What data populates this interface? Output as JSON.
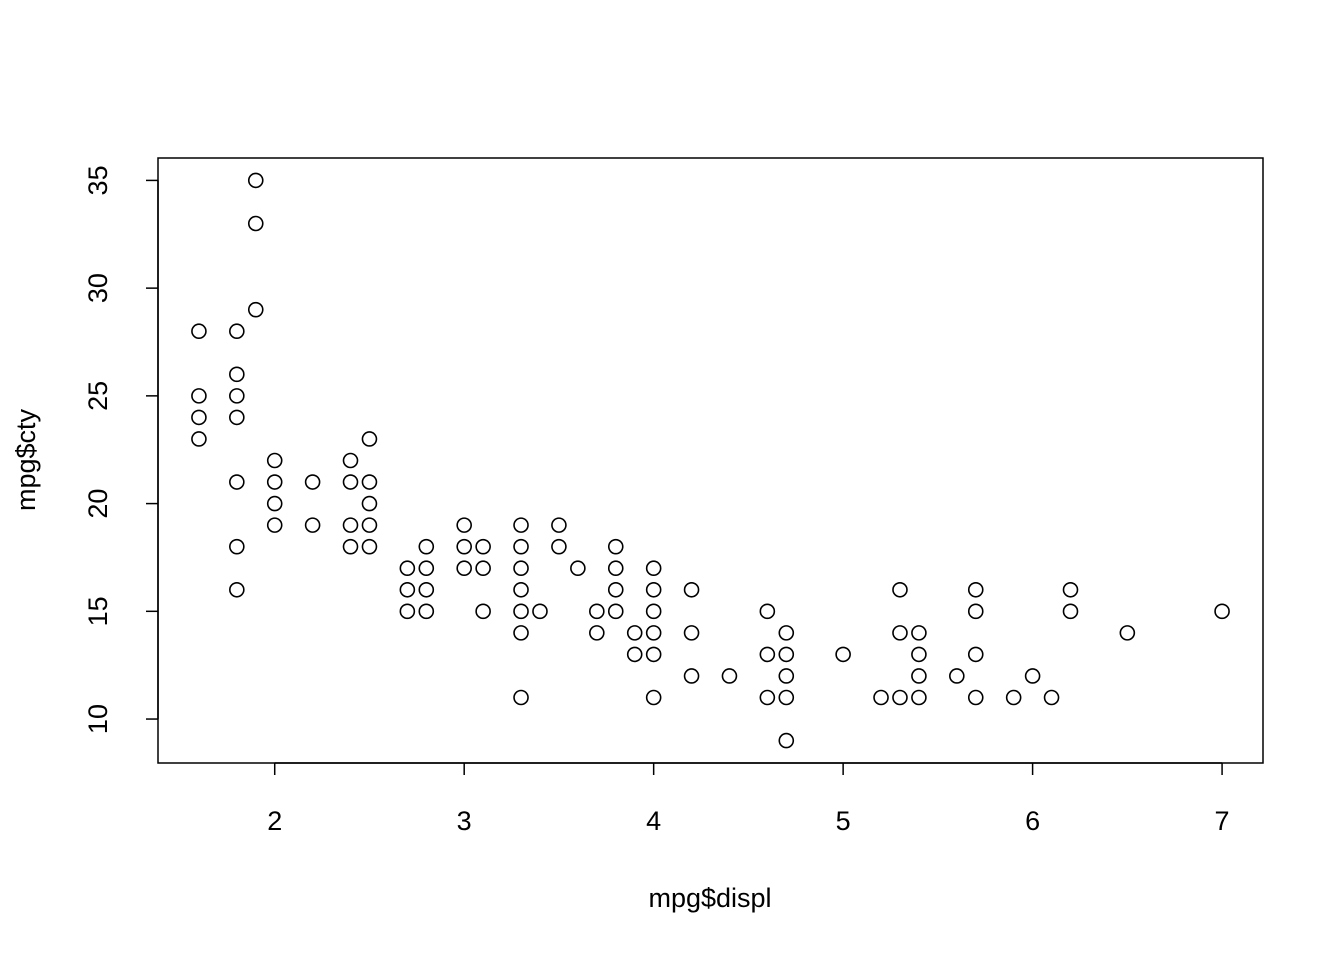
{
  "chart_data": {
    "type": "scatter",
    "x_label": "mpg$displ",
    "y_label": "mpg$cty",
    "x": [
      1.6,
      1.6,
      1.6,
      1.6,
      1.8,
      1.8,
      1.8,
      1.8,
      1.8,
      1.8,
      1.8,
      1.9,
      1.9,
      1.9,
      2.0,
      2.0,
      2.0,
      2.0,
      2.2,
      2.2,
      2.4,
      2.4,
      2.4,
      2.4,
      2.5,
      2.5,
      2.5,
      2.5,
      2.5,
      2.7,
      2.7,
      2.7,
      2.8,
      2.8,
      2.8,
      2.8,
      3.0,
      3.0,
      3.0,
      3.1,
      3.1,
      3.1,
      3.3,
      3.3,
      3.3,
      3.3,
      3.3,
      3.3,
      3.3,
      3.4,
      3.5,
      3.5,
      3.6,
      3.7,
      3.7,
      3.8,
      3.8,
      3.8,
      3.8,
      3.9,
      3.9,
      4.0,
      4.0,
      4.0,
      4.0,
      4.0,
      4.0,
      4.2,
      4.2,
      4.2,
      4.4,
      4.6,
      4.6,
      4.6,
      4.7,
      4.7,
      4.7,
      4.7,
      4.7,
      5.0,
      5.2,
      5.3,
      5.3,
      5.3,
      5.4,
      5.4,
      5.4,
      5.4,
      5.6,
      5.7,
      5.7,
      5.7,
      5.7,
      5.9,
      6.0,
      6.1,
      6.2,
      6.2,
      6.5,
      7.0
    ],
    "values": [
      28,
      25,
      24,
      23,
      28,
      26,
      25,
      24,
      21,
      18,
      16,
      35,
      33,
      29,
      22,
      21,
      20,
      19,
      21,
      19,
      22,
      21,
      19,
      18,
      23,
      21,
      20,
      19,
      18,
      17,
      16,
      15,
      18,
      17,
      16,
      15,
      19,
      18,
      17,
      18,
      17,
      15,
      19,
      18,
      17,
      16,
      15,
      14,
      11,
      15,
      19,
      18,
      17,
      15,
      14,
      18,
      17,
      16,
      15,
      14,
      13,
      17,
      16,
      15,
      14,
      13,
      11,
      16,
      14,
      12,
      12,
      15,
      13,
      11,
      14,
      13,
      12,
      11,
      9,
      13,
      11,
      16,
      14,
      11,
      14,
      13,
      12,
      11,
      12,
      16,
      15,
      13,
      11,
      11,
      12,
      11,
      16,
      15,
      14,
      15
    ],
    "xlim": [
      1.384,
      7.216
    ],
    "ylim": [
      7.96,
      36.04
    ],
    "xticks": [
      2,
      3,
      4,
      5,
      6,
      7
    ],
    "yticks": [
      10,
      15,
      20,
      25,
      30,
      35
    ]
  }
}
